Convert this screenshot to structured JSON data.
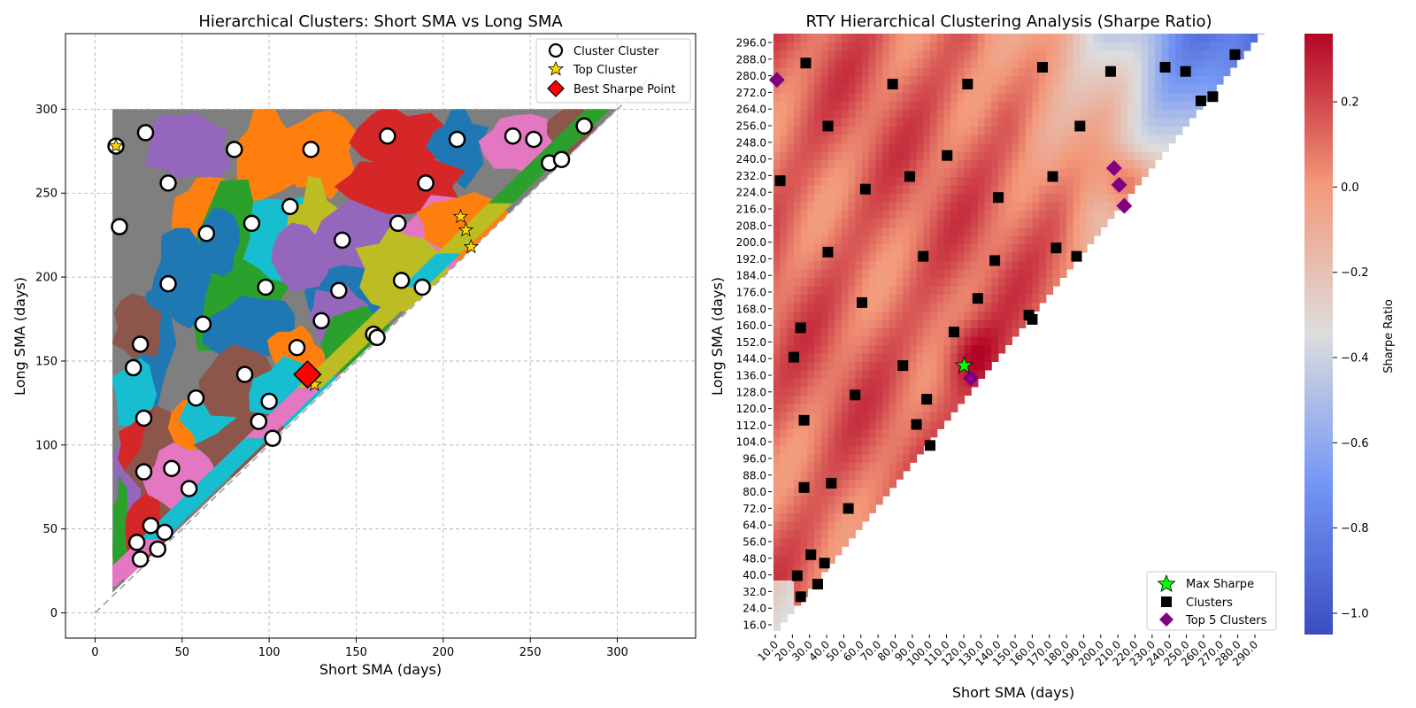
{
  "chart_data": [
    {
      "type": "scatter",
      "title": "Hierarchical Clusters: Short SMA vs Long SMA",
      "xlabel": "Short SMA (days)",
      "ylabel": "Long SMA (days)",
      "xlim": [
        -17,
        345
      ],
      "ylim": [
        -15,
        345
      ],
      "xticks": [
        0,
        50,
        100,
        150,
        200,
        250,
        300
      ],
      "yticks": [
        0,
        50,
        100,
        150,
        200,
        250,
        300
      ],
      "grid": true,
      "legend_position": "top-right",
      "legend": [
        "Cluster Cluster",
        "Top Cluster",
        "Best Sharpe Point"
      ],
      "series": [
        {
          "name": "Cluster Cluster",
          "marker": "white-circle",
          "points": [
            [
              12,
              278
            ],
            [
              29,
              286
            ],
            [
              14,
              230
            ],
            [
              42,
              256
            ],
            [
              80,
              276
            ],
            [
              124,
              276
            ],
            [
              168,
              284
            ],
            [
              208,
              282
            ],
            [
              240,
              284
            ],
            [
              252,
              282
            ],
            [
              261,
              268
            ],
            [
              268,
              270
            ],
            [
              281,
              290
            ],
            [
              64,
              226
            ],
            [
              90,
              232
            ],
            [
              112,
              242
            ],
            [
              142,
              222
            ],
            [
              174,
              232
            ],
            [
              190,
              256
            ],
            [
              42,
              196
            ],
            [
              98,
              194
            ],
            [
              140,
              192
            ],
            [
              62,
              172
            ],
            [
              130,
              174
            ],
            [
              176,
              198
            ],
            [
              188,
              194
            ],
            [
              26,
              160
            ],
            [
              22,
              146
            ],
            [
              86,
              142
            ],
            [
              116,
              158
            ],
            [
              160,
              166
            ],
            [
              162,
              164
            ],
            [
              28,
              116
            ],
            [
              58,
              128
            ],
            [
              94,
              114
            ],
            [
              100,
              126
            ],
            [
              102,
              104
            ],
            [
              28,
              84
            ],
            [
              44,
              86
            ],
            [
              54,
              74
            ],
            [
              24,
              42
            ],
            [
              32,
              52
            ],
            [
              40,
              48
            ],
            [
              36,
              38
            ],
            [
              26,
              32
            ]
          ]
        },
        {
          "name": "Top Cluster",
          "marker": "star",
          "points": [
            [
              12,
              278
            ],
            [
              210,
              236
            ],
            [
              213,
              228
            ],
            [
              216,
              218
            ],
            [
              126,
              136
            ]
          ]
        },
        {
          "name": "Best Sharpe Point",
          "marker": "diamond",
          "points": [
            [
              122,
              142
            ]
          ]
        }
      ],
      "colors": {
        "gray": "#7f7f7f",
        "blue": "#1f77b4",
        "orange": "#ff7f0e",
        "green": "#2ca02c",
        "red": "#d62728",
        "purple": "#9467bd",
        "brown": "#8c564b",
        "pink": "#e377c2",
        "olive": "#bcbd22",
        "cyan": "#17becf"
      }
    },
    {
      "type": "heatmap",
      "title": "RTY Hierarchical Clustering Analysis (Sharpe Ratio)",
      "xlabel": "Short SMA (days)",
      "ylabel": "Long SMA (days)",
      "x_tick_labels": [
        "10.0",
        "20.0",
        "30.0",
        "40.0",
        "50.0",
        "60.0",
        "70.0",
        "80.0",
        "90.0",
        "100.0",
        "110.0",
        "120.0",
        "130.0",
        "140.0",
        "150.0",
        "160.0",
        "170.0",
        "180.0",
        "190.0",
        "200.0",
        "210.0",
        "220.0",
        "230.0",
        "240.0",
        "250.0",
        "260.0",
        "270.0",
        "280.0",
        "290.0"
      ],
      "y_tick_labels": [
        "296.0",
        "288.0",
        "280.0",
        "272.0",
        "264.0",
        "256.0",
        "248.0",
        "240.0",
        "232.0",
        "224.0",
        "216.0",
        "208.0",
        "200.0",
        "192.0",
        "184.0",
        "176.0",
        "168.0",
        "160.0",
        "152.0",
        "144.0",
        "136.0",
        "128.0",
        "120.0",
        "112.0",
        "104.0",
        "96.0",
        "88.0",
        "80.0",
        "72.0",
        "64.0",
        "56.0",
        "48.0",
        "40.0",
        "32.0",
        "24.0",
        "16.0"
      ],
      "colorbar": {
        "label": "Sharpe Ratio",
        "range": [
          -1.05,
          0.36
        ],
        "ticks": [
          "0.2",
          "0.0",
          "−0.2",
          "−0.4",
          "−0.6",
          "−0.8",
          "−1.0"
        ],
        "tick_values": [
          0.2,
          0.0,
          -0.2,
          -0.4,
          -0.6,
          -0.8,
          -1.0
        ],
        "colormap": "coolwarm"
      },
      "legend_position": "bottom-right",
      "legend": [
        "Max Sharpe",
        "Clusters",
        "Top 5 Clusters"
      ],
      "max_sharpe": [
        [
          122,
          142
        ]
      ],
      "top5_clusters": [
        [
          12,
          278
        ],
        [
          210,
          236
        ],
        [
          213,
          228
        ],
        [
          216,
          218
        ],
        [
          126,
          136
        ]
      ],
      "clusters": [
        [
          29,
          286
        ],
        [
          14,
          230
        ],
        [
          42,
          256
        ],
        [
          80,
          276
        ],
        [
          124,
          276
        ],
        [
          168,
          284
        ],
        [
          208,
          282
        ],
        [
          240,
          284
        ],
        [
          252,
          282
        ],
        [
          261,
          268
        ],
        [
          268,
          270
        ],
        [
          281,
          290
        ],
        [
          64,
          226
        ],
        [
          90,
          232
        ],
        [
          112,
          242
        ],
        [
          142,
          222
        ],
        [
          174,
          232
        ],
        [
          190,
          256
        ],
        [
          42,
          196
        ],
        [
          98,
          194
        ],
        [
          140,
          192
        ],
        [
          62,
          172
        ],
        [
          130,
          174
        ],
        [
          176,
          198
        ],
        [
          188,
          194
        ],
        [
          26,
          160
        ],
        [
          22,
          146
        ],
        [
          86,
          142
        ],
        [
          116,
          158
        ],
        [
          160,
          166
        ],
        [
          162,
          164
        ],
        [
          28,
          116
        ],
        [
          58,
          128
        ],
        [
          94,
          114
        ],
        [
          100,
          126
        ],
        [
          102,
          104
        ],
        [
          28,
          84
        ],
        [
          44,
          86
        ],
        [
          54,
          74
        ],
        [
          24,
          42
        ],
        [
          32,
          52
        ],
        [
          40,
          48
        ],
        [
          36,
          38
        ],
        [
          26,
          32
        ]
      ]
    }
  ]
}
